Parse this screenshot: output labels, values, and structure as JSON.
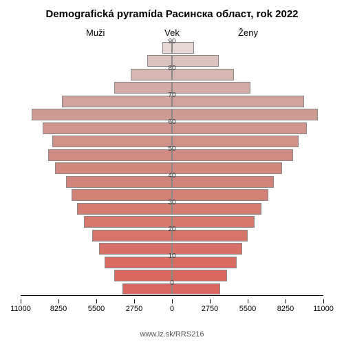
{
  "title": "Demografická pyramída Расинска област, rok 2022",
  "labels": {
    "left": "Muži",
    "center": "Vek",
    "right": "Ženy"
  },
  "footer": "www.iz.sk/RRS216",
  "chart": {
    "type": "population-pyramid",
    "background_color": "#ffffff",
    "title_fontsize": 15,
    "label_fontsize": 13,
    "tick_fontsize": 11,
    "bar_border_color": "#888888",
    "axis_color": "#000000",
    "x_axis": {
      "max": 11000,
      "ticks": [
        11000,
        8250,
        5500,
        2750,
        0,
        2750,
        5500,
        8250,
        11000
      ]
    },
    "y_tick_step": 10,
    "age_groups": [
      {
        "age": 0,
        "male": 3600,
        "female": 3500,
        "color_left": "#d8655f",
        "color_right": "#d8655f"
      },
      {
        "age": 5,
        "male": 4200,
        "female": 4000,
        "color_left": "#d86860",
        "color_right": "#d86860"
      },
      {
        "age": 10,
        "male": 4900,
        "female": 4700,
        "color_left": "#d86c63",
        "color_right": "#d86c63"
      },
      {
        "age": 15,
        "male": 5300,
        "female": 5100,
        "color_left": "#d77066",
        "color_right": "#d77066"
      },
      {
        "age": 20,
        "male": 5800,
        "female": 5500,
        "color_left": "#d6746a",
        "color_right": "#d6746a"
      },
      {
        "age": 25,
        "male": 6400,
        "female": 6000,
        "color_left": "#d5786e",
        "color_right": "#d5786e"
      },
      {
        "age": 30,
        "male": 6900,
        "female": 6500,
        "color_left": "#d47c72",
        "color_right": "#d47c72"
      },
      {
        "age": 35,
        "male": 7300,
        "female": 7000,
        "color_left": "#d38076",
        "color_right": "#d38076"
      },
      {
        "age": 40,
        "male": 7700,
        "female": 7400,
        "color_left": "#d2847a",
        "color_right": "#d2847a"
      },
      {
        "age": 45,
        "male": 8500,
        "female": 8000,
        "color_left": "#d1887e",
        "color_right": "#d1887e"
      },
      {
        "age": 50,
        "male": 9000,
        "female": 8800,
        "color_left": "#d08c83",
        "color_right": "#d08c83"
      },
      {
        "age": 55,
        "male": 8700,
        "female": 9200,
        "color_left": "#cf9188",
        "color_right": "#cf9188"
      },
      {
        "age": 60,
        "male": 9400,
        "female": 9800,
        "color_left": "#cf968e",
        "color_right": "#cf968e"
      },
      {
        "age": 65,
        "male": 10200,
        "female": 10600,
        "color_left": "#cf9c94",
        "color_right": "#cf9c94"
      },
      {
        "age": 70,
        "male": 8000,
        "female": 9600,
        "color_left": "#d0a39c",
        "color_right": "#d0a39c"
      },
      {
        "age": 75,
        "male": 4200,
        "female": 5700,
        "color_left": "#d2aba5",
        "color_right": "#d2aba5"
      },
      {
        "age": 80,
        "male": 3000,
        "female": 4500,
        "color_left": "#d6b6b1",
        "color_right": "#d6b6b1"
      },
      {
        "age": 85,
        "male": 1800,
        "female": 3400,
        "color_left": "#dcc3c0",
        "color_right": "#dcc3c0"
      },
      {
        "age": 90,
        "male": 700,
        "female": 1600,
        "color_left": "#e7d7d5",
        "color_right": "#e7d7d5"
      }
    ]
  }
}
